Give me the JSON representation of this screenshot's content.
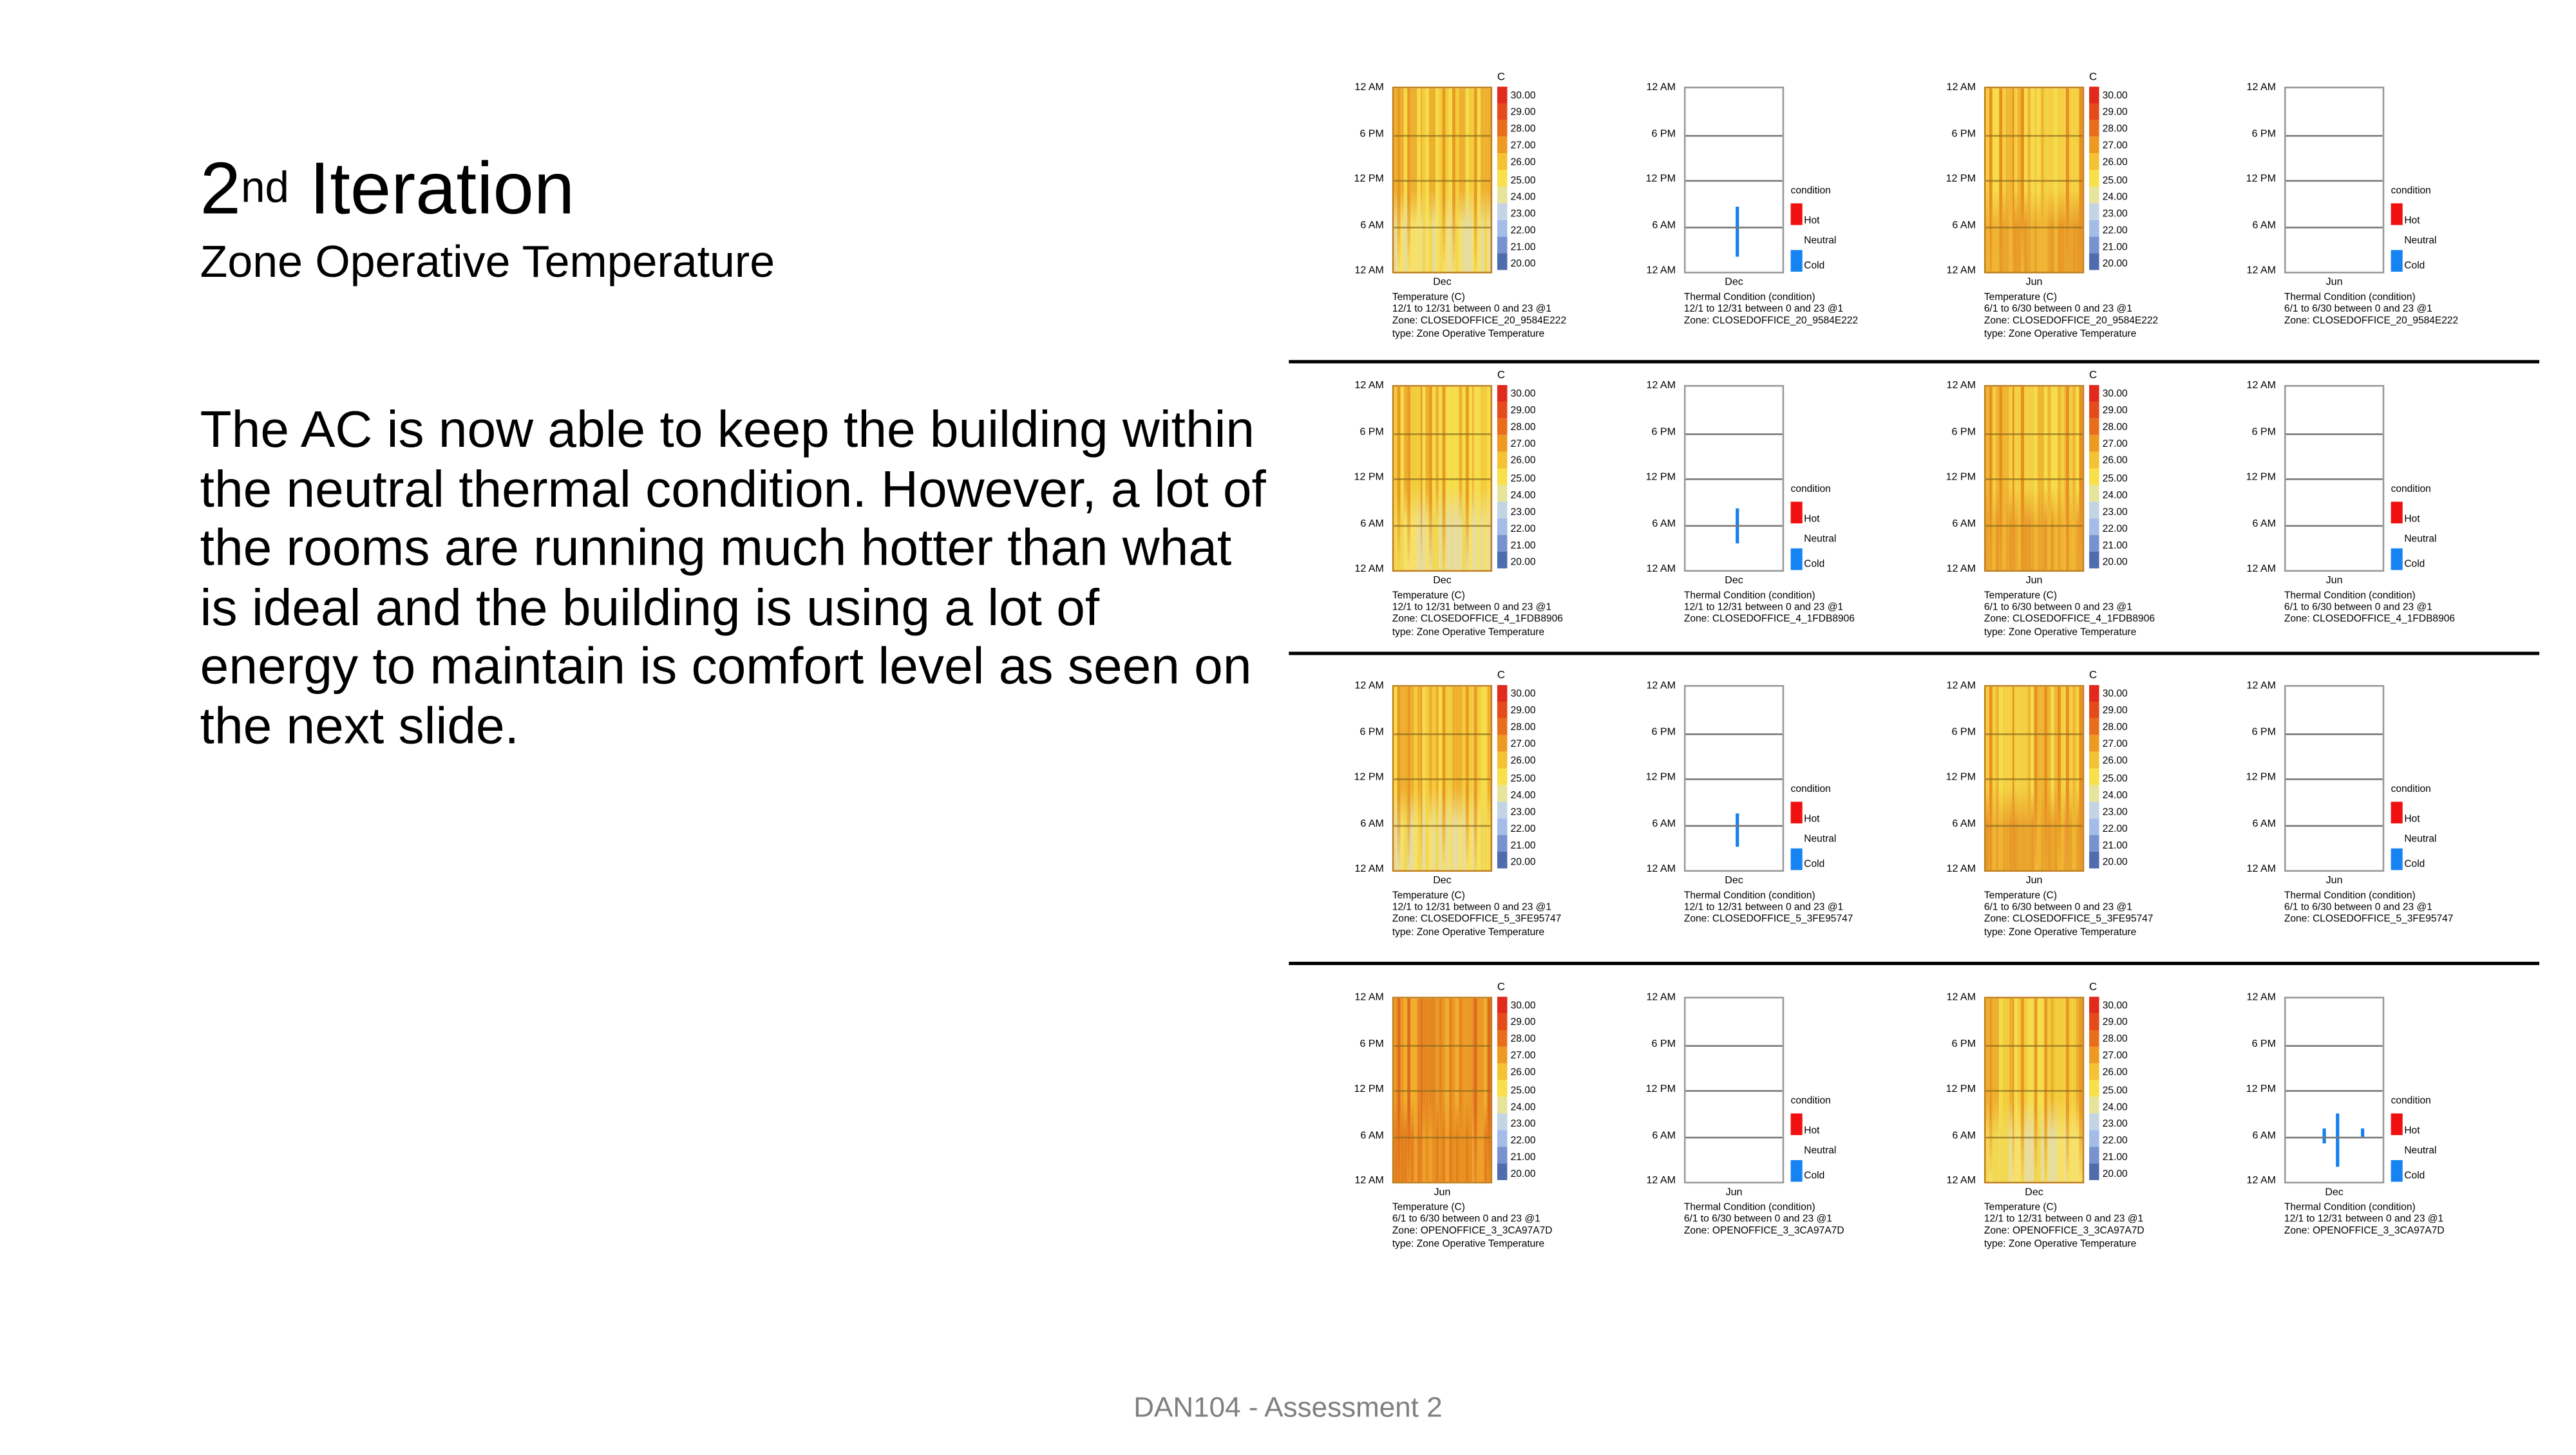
{
  "slide": {
    "title_main": "2",
    "title_sup": "nd",
    "title_rest": " Iteration",
    "subtitle": "Zone Operative Temperature",
    "body": "The AC is now able to keep the building within the neutral thermal condition. However, a lot of the rooms are running much hotter than what is ideal and the building is using a lot of energy to maintain is comfort level as seen on the next slide.",
    "footer": "DAN104 - Assessment 2"
  },
  "axis": {
    "y_ticks": [
      "12 AM",
      "6 PM",
      "12 PM",
      "6 AM",
      "12 AM"
    ],
    "unit": "C",
    "colorbar_labels": [
      "30.00",
      "29.00",
      "28.00",
      "27.00",
      "26.00",
      "25.00",
      "24.00",
      "23.00",
      "22.00",
      "21.00",
      "20.00"
    ],
    "colorbar_colors": [
      "#e02a1c",
      "#e54a1a",
      "#e86e1c",
      "#ee9a22",
      "#f4c232",
      "#f8e04a",
      "#e6e49a",
      "#c4d4e4",
      "#a4bce8",
      "#7892d0",
      "#4e6cae"
    ],
    "legend_title": "condition",
    "legend": [
      {
        "label": "Hot",
        "color": "#f01010"
      },
      {
        "label": "Neutral",
        "color": ""
      },
      {
        "label": "Cold",
        "color": "#1584f2"
      }
    ]
  },
  "chart_data": [
    {
      "type": "heatmap",
      "row": 0,
      "col": 0,
      "month": "Dec",
      "caption": [
        "Temperature (C)",
        "12/1 to 12/31 between 0 and 23 @1",
        "Zone: CLOSEDOFFICE_20_9584E222",
        "type: Zone Operative Temperature"
      ],
      "heat": "mild",
      "ylim": [
        0,
        24
      ],
      "zlim": [
        20,
        30
      ]
    },
    {
      "type": "condition",
      "row": 0,
      "col": 1,
      "month": "Dec",
      "caption": [
        "Thermal Condition (condition)",
        "12/1 to 12/31 between 0 and 23 @1",
        "Zone: CLOSEDOFFICE_20_9584E222"
      ],
      "neutral": [
        {
          "day": 16,
          "from_hour": 2,
          "to_hour": 8.5
        }
      ]
    },
    {
      "type": "heatmap",
      "row": 0,
      "col": 2,
      "month": "Jun",
      "caption": [
        "Temperature (C)",
        "6/1 to 6/30 between 0 and 23 @1",
        "Zone: CLOSEDOFFICE_20_9584E222",
        "type: Zone Operative Temperature"
      ],
      "heat": "hot",
      "ylim": [
        0,
        24
      ],
      "zlim": [
        20,
        30
      ]
    },
    {
      "type": "condition",
      "row": 0,
      "col": 3,
      "month": "Jun",
      "caption": [
        "Thermal Condition (condition)",
        "6/1 to 6/30 between 0 and 23 @1",
        "Zone: CLOSEDOFFICE_20_9584E222"
      ],
      "neutral": []
    },
    {
      "type": "heatmap",
      "row": 1,
      "col": 0,
      "month": "Dec",
      "caption": [
        "Temperature (C)",
        "12/1 to 12/31 between 0 and 23 @1",
        "Zone: CLOSEDOFFICE_4_1FDB8906",
        "type: Zone Operative Temperature"
      ],
      "heat": "mild",
      "ylim": [
        0,
        24
      ],
      "zlim": [
        20,
        30
      ]
    },
    {
      "type": "condition",
      "row": 1,
      "col": 1,
      "month": "Dec",
      "caption": [
        "Thermal Condition (condition)",
        "12/1 to 12/31 between 0 and 23 @1",
        "Zone: CLOSEDOFFICE_4_1FDB8906"
      ],
      "neutral": [
        {
          "day": 16,
          "from_hour": 3.5,
          "to_hour": 8
        }
      ]
    },
    {
      "type": "heatmap",
      "row": 1,
      "col": 2,
      "month": "Jun",
      "caption": [
        "Temperature (C)",
        "6/1 to 6/30 between 0 and 23 @1",
        "Zone: CLOSEDOFFICE_4_1FDB8906",
        "type: Zone Operative Temperature"
      ],
      "heat": "hot",
      "ylim": [
        0,
        24
      ],
      "zlim": [
        20,
        30
      ]
    },
    {
      "type": "condition",
      "row": 1,
      "col": 3,
      "month": "Jun",
      "caption": [
        "Thermal Condition (condition)",
        "6/1 to 6/30 between 0 and 23 @1",
        "Zone: CLOSEDOFFICE_4_1FDB8906"
      ],
      "neutral": []
    },
    {
      "type": "heatmap",
      "row": 2,
      "col": 0,
      "month": "Dec",
      "caption": [
        "Temperature (C)",
        "12/1 to 12/31 between 0 and 23 @1",
        "Zone: CLOSEDOFFICE_5_3FE95747",
        "type: Zone Operative Temperature"
      ],
      "heat": "mild",
      "ylim": [
        0,
        24
      ],
      "zlim": [
        20,
        30
      ]
    },
    {
      "type": "condition",
      "row": 2,
      "col": 1,
      "month": "Dec",
      "caption": [
        "Thermal Condition (condition)",
        "12/1 to 12/31 between 0 and 23 @1",
        "Zone: CLOSEDOFFICE_5_3FE95747"
      ],
      "neutral": [
        {
          "day": 16,
          "from_hour": 3,
          "to_hour": 7.5
        }
      ]
    },
    {
      "type": "heatmap",
      "row": 2,
      "col": 2,
      "month": "Jun",
      "caption": [
        "Temperature (C)",
        "6/1 to 6/30 between 0 and 23 @1",
        "Zone: CLOSEDOFFICE_5_3FE95747",
        "type: Zone Operative Temperature"
      ],
      "heat": "hot",
      "ylim": [
        0,
        24
      ],
      "zlim": [
        20,
        30
      ]
    },
    {
      "type": "condition",
      "row": 2,
      "col": 3,
      "month": "Jun",
      "caption": [
        "Thermal Condition (condition)",
        "6/1 to 6/30 between 0 and 23 @1",
        "Zone: CLOSEDOFFICE_5_3FE95747"
      ],
      "neutral": []
    },
    {
      "type": "heatmap",
      "row": 3,
      "col": 0,
      "month": "Jun",
      "caption": [
        "Temperature (C)",
        "6/1 to 6/30 between 0 and 23 @1",
        "Zone: OPENOFFICE_3_3CA97A7D",
        "type: Zone Operative Temperature"
      ],
      "heat": "hotter",
      "ylim": [
        0,
        24
      ],
      "zlim": [
        20,
        30
      ]
    },
    {
      "type": "condition",
      "row": 3,
      "col": 1,
      "month": "Jun",
      "caption": [
        "Thermal Condition (condition)",
        "6/1 to 6/30 between 0 and 23 @1",
        "Zone: OPENOFFICE_3_3CA97A7D"
      ],
      "neutral": []
    },
    {
      "type": "heatmap",
      "row": 3,
      "col": 2,
      "month": "Dec",
      "caption": [
        "Temperature (C)",
        "12/1 to 12/31 between 0 and 23 @1",
        "Zone: OPENOFFICE_3_3CA97A7D",
        "type: Zone Operative Temperature"
      ],
      "heat": "mild",
      "ylim": [
        0,
        24
      ],
      "zlim": [
        20,
        30
      ]
    },
    {
      "type": "condition",
      "row": 3,
      "col": 3,
      "month": "Dec",
      "caption": [
        "Thermal Condition (condition)",
        "12/1 to 12/31 between 0 and 23 @1",
        "Zone: OPENOFFICE_3_3CA97A7D"
      ],
      "neutral": [
        {
          "day": 12,
          "from_hour": 5,
          "to_hour": 7
        },
        {
          "day": 16,
          "from_hour": 2,
          "to_hour": 9
        },
        {
          "day": 24,
          "from_hour": 6,
          "to_hour": 7
        }
      ]
    }
  ]
}
